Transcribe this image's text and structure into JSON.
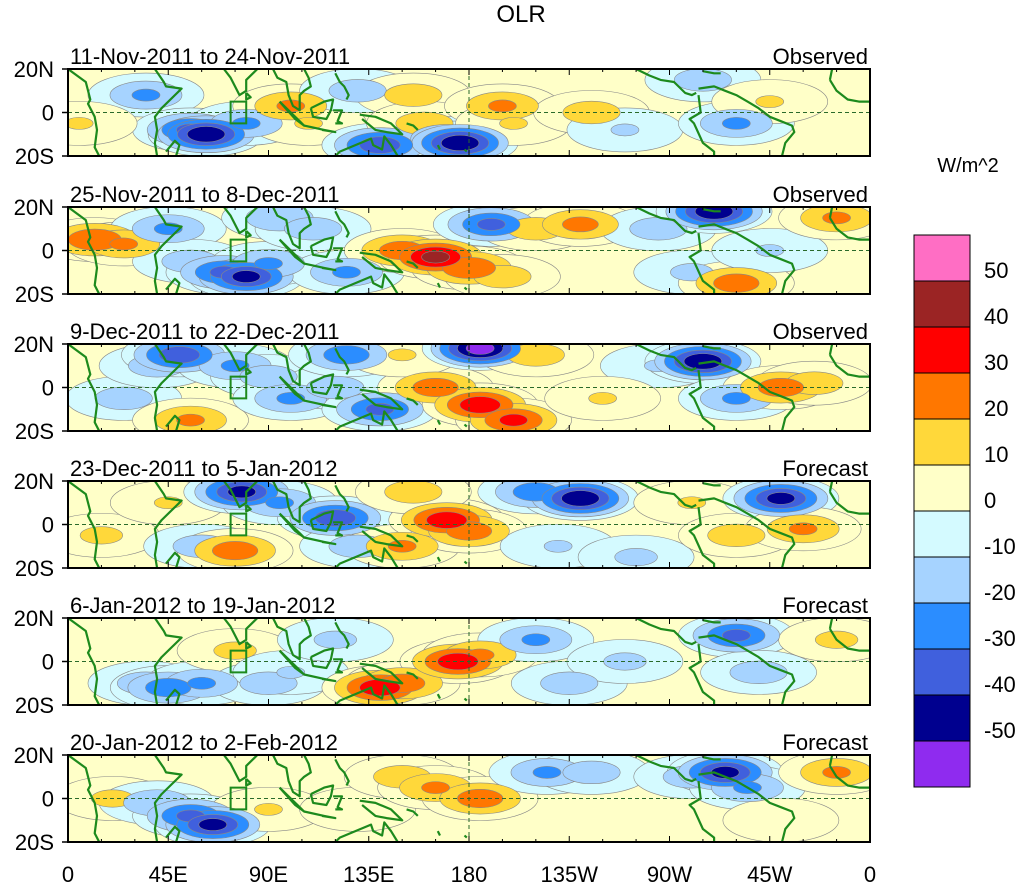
{
  "chart_data": {
    "type": "heatmap",
    "title": "OLR",
    "units": "W/m^2",
    "colorbar": {
      "labels": [
        "50",
        "40",
        "30",
        "20",
        "10",
        "0",
        "-10",
        "-20",
        "-30",
        "-40",
        "-50"
      ],
      "colors": [
        "#ff6ec4",
        "#9b2424",
        "#ff0000",
        "#ff7700",
        "#ffd83a",
        "#ffffc8",
        "#d4faff",
        "#a6d3ff",
        "#2b8dff",
        "#4060dd",
        "#00008f",
        "#8f2bef"
      ]
    },
    "x_ticks": [
      "0",
      "45E",
      "90E",
      "135E",
      "180",
      "135W",
      "90W",
      "45W",
      "0"
    ],
    "y_ticks": [
      "20N",
      "0",
      "20S"
    ],
    "panels": [
      {
        "period": "11-Nov-2011 to 24-Nov-2011",
        "kind": "Observed",
        "anomalies": [
          {
            "lon": 35,
            "lat": 8,
            "v": -20
          },
          {
            "lon": 55,
            "lat": -8,
            "v": -30
          },
          {
            "lon": 62,
            "lat": -10,
            "v": -45
          },
          {
            "lon": 80,
            "lat": -5,
            "v": -20
          },
          {
            "lon": 100,
            "lat": 3,
            "v": 20
          },
          {
            "lon": 108,
            "lat": -5,
            "v": 10
          },
          {
            "lon": 130,
            "lat": 10,
            "v": -15
          },
          {
            "lon": 140,
            "lat": -15,
            "v": -35
          },
          {
            "lon": 155,
            "lat": 8,
            "v": 15
          },
          {
            "lon": 160,
            "lat": -5,
            "v": 15
          },
          {
            "lon": 170,
            "lat": -12,
            "v": -20
          },
          {
            "lon": 176,
            "lat": -14,
            "v": -45
          },
          {
            "lon": 195,
            "lat": 3,
            "v": 20
          },
          {
            "lon": 200,
            "lat": -5,
            "v": 10
          },
          {
            "lon": 235,
            "lat": 0,
            "v": 15
          },
          {
            "lon": 250,
            "lat": -8,
            "v": -10
          },
          {
            "lon": 285,
            "lat": 15,
            "v": -15
          },
          {
            "lon": 300,
            "lat": -5,
            "v": -20
          },
          {
            "lon": 315,
            "lat": 5,
            "v": 10
          },
          {
            "lon": 5,
            "lat": -5,
            "v": 10
          }
        ]
      },
      {
        "period": "25-Nov-2011 to 8-Dec-2011",
        "kind": "Observed",
        "anomalies": [
          {
            "lon": 12,
            "lat": 5,
            "v": 28
          },
          {
            "lon": 25,
            "lat": 3,
            "v": 20
          },
          {
            "lon": 45,
            "lat": 10,
            "v": -20
          },
          {
            "lon": 55,
            "lat": -5,
            "v": -15
          },
          {
            "lon": 70,
            "lat": -10,
            "v": -30
          },
          {
            "lon": 80,
            "lat": -12,
            "v": -40
          },
          {
            "lon": 90,
            "lat": -6,
            "v": -20
          },
          {
            "lon": 95,
            "lat": 15,
            "v": -18
          },
          {
            "lon": 110,
            "lat": 10,
            "v": -15
          },
          {
            "lon": 125,
            "lat": -10,
            "v": -20
          },
          {
            "lon": 150,
            "lat": 0,
            "v": 25
          },
          {
            "lon": 165,
            "lat": -3,
            "v": 40
          },
          {
            "lon": 180,
            "lat": -8,
            "v": 28
          },
          {
            "lon": 195,
            "lat": -12,
            "v": 15
          },
          {
            "lon": 190,
            "lat": 12,
            "v": -30
          },
          {
            "lon": 210,
            "lat": 10,
            "v": 15
          },
          {
            "lon": 230,
            "lat": 12,
            "v": 22
          },
          {
            "lon": 265,
            "lat": 10,
            "v": -15
          },
          {
            "lon": 280,
            "lat": -10,
            "v": -12
          },
          {
            "lon": 290,
            "lat": 18,
            "v": -45
          },
          {
            "lon": 300,
            "lat": -15,
            "v": 25
          },
          {
            "lon": 315,
            "lat": 0,
            "v": -10
          },
          {
            "lon": 345,
            "lat": 15,
            "v": 20
          }
        ]
      },
      {
        "period": "9-Dec-2011 to 22-Dec-2011",
        "kind": "Observed",
        "anomalies": [
          {
            "lon": 25,
            "lat": -5,
            "v": -15
          },
          {
            "lon": 40,
            "lat": 10,
            "v": -15
          },
          {
            "lon": 50,
            "lat": 15,
            "v": -35
          },
          {
            "lon": 55,
            "lat": -15,
            "v": 20
          },
          {
            "lon": 75,
            "lat": 10,
            "v": -20
          },
          {
            "lon": 90,
            "lat": 5,
            "v": -15
          },
          {
            "lon": 100,
            "lat": -5,
            "v": -20
          },
          {
            "lon": 120,
            "lat": 0,
            "v": -15
          },
          {
            "lon": 125,
            "lat": 15,
            "v": -25
          },
          {
            "lon": 140,
            "lat": -10,
            "v": -30
          },
          {
            "lon": 165,
            "lat": 0,
            "v": 25
          },
          {
            "lon": 185,
            "lat": -8,
            "v": 35
          },
          {
            "lon": 200,
            "lat": -15,
            "v": 30
          },
          {
            "lon": 150,
            "lat": 15,
            "v": 10
          },
          {
            "lon": 185,
            "lat": 18,
            "v": -50
          },
          {
            "lon": 210,
            "lat": 15,
            "v": 15
          },
          {
            "lon": 265,
            "lat": 10,
            "v": -10
          },
          {
            "lon": 285,
            "lat": 12,
            "v": -45
          },
          {
            "lon": 300,
            "lat": -5,
            "v": -20
          },
          {
            "lon": 320,
            "lat": 0,
            "v": 25
          },
          {
            "lon": 335,
            "lat": 2,
            "v": 15
          },
          {
            "lon": 240,
            "lat": -5,
            "v": 10
          }
        ]
      },
      {
        "period": "23-Dec-2011 to 5-Jan-2012",
        "kind": "Forecast",
        "anomalies": [
          {
            "lon": 15,
            "lat": -5,
            "v": 12
          },
          {
            "lon": 45,
            "lat": 10,
            "v": 10
          },
          {
            "lon": 60,
            "lat": -10,
            "v": -15
          },
          {
            "lon": 75,
            "lat": -12,
            "v": 25
          },
          {
            "lon": 78,
            "lat": 15,
            "v": -40
          },
          {
            "lon": 95,
            "lat": 10,
            "v": -20
          },
          {
            "lon": 120,
            "lat": 3,
            "v": -35
          },
          {
            "lon": 130,
            "lat": -10,
            "v": -15
          },
          {
            "lon": 150,
            "lat": -10,
            "v": 20
          },
          {
            "lon": 170,
            "lat": 2,
            "v": 35
          },
          {
            "lon": 180,
            "lat": -3,
            "v": 25
          },
          {
            "lon": 155,
            "lat": 15,
            "v": 15
          },
          {
            "lon": 210,
            "lat": 15,
            "v": -25
          },
          {
            "lon": 230,
            "lat": 12,
            "v": -45
          },
          {
            "lon": 220,
            "lat": -10,
            "v": -10
          },
          {
            "lon": 255,
            "lat": -15,
            "v": -12
          },
          {
            "lon": 280,
            "lat": 10,
            "v": 10
          },
          {
            "lon": 300,
            "lat": -5,
            "v": 15
          },
          {
            "lon": 320,
            "lat": 12,
            "v": -40
          },
          {
            "lon": 330,
            "lat": -2,
            "v": 20
          }
        ]
      },
      {
        "period": "6-Jan-2012 to 19-Jan-2012",
        "kind": "Forecast",
        "anomalies": [
          {
            "lon": 35,
            "lat": -10,
            "v": -15
          },
          {
            "lon": 45,
            "lat": -12,
            "v": -25
          },
          {
            "lon": 60,
            "lat": -10,
            "v": -20
          },
          {
            "lon": 75,
            "lat": 5,
            "v": 12
          },
          {
            "lon": 90,
            "lat": -10,
            "v": -15
          },
          {
            "lon": 100,
            "lat": -5,
            "v": -10
          },
          {
            "lon": 120,
            "lat": 10,
            "v": -12
          },
          {
            "lon": 140,
            "lat": -12,
            "v": 35
          },
          {
            "lon": 150,
            "lat": -10,
            "v": 25
          },
          {
            "lon": 175,
            "lat": 0,
            "v": 35
          },
          {
            "lon": 185,
            "lat": 3,
            "v": 20
          },
          {
            "lon": 210,
            "lat": 10,
            "v": -20
          },
          {
            "lon": 225,
            "lat": -10,
            "v": -15
          },
          {
            "lon": 250,
            "lat": 0,
            "v": -12
          },
          {
            "lon": 300,
            "lat": 12,
            "v": -30
          },
          {
            "lon": 310,
            "lat": -5,
            "v": -15
          },
          {
            "lon": 345,
            "lat": 10,
            "v": 12
          }
        ]
      },
      {
        "period": "20-Jan-2012 to 2-Feb-2012",
        "kind": "Forecast",
        "anomalies": [
          {
            "lon": 20,
            "lat": 0,
            "v": 12
          },
          {
            "lon": 40,
            "lat": -2,
            "v": -18
          },
          {
            "lon": 55,
            "lat": -8,
            "v": -30
          },
          {
            "lon": 65,
            "lat": -12,
            "v": -40
          },
          {
            "lon": 90,
            "lat": -5,
            "v": 10
          },
          {
            "lon": 130,
            "lat": -5,
            "v": 8
          },
          {
            "lon": 150,
            "lat": 10,
            "v": 15
          },
          {
            "lon": 165,
            "lat": 5,
            "v": 20
          },
          {
            "lon": 185,
            "lat": 0,
            "v": 25
          },
          {
            "lon": 215,
            "lat": 12,
            "v": -20
          },
          {
            "lon": 235,
            "lat": 12,
            "v": -15
          },
          {
            "lon": 280,
            "lat": 10,
            "v": -15
          },
          {
            "lon": 295,
            "lat": 12,
            "v": -40
          },
          {
            "lon": 305,
            "lat": 5,
            "v": -20
          },
          {
            "lon": 345,
            "lat": 12,
            "v": 20
          },
          {
            "lon": 320,
            "lat": -10,
            "v": 5
          }
        ]
      }
    ]
  }
}
